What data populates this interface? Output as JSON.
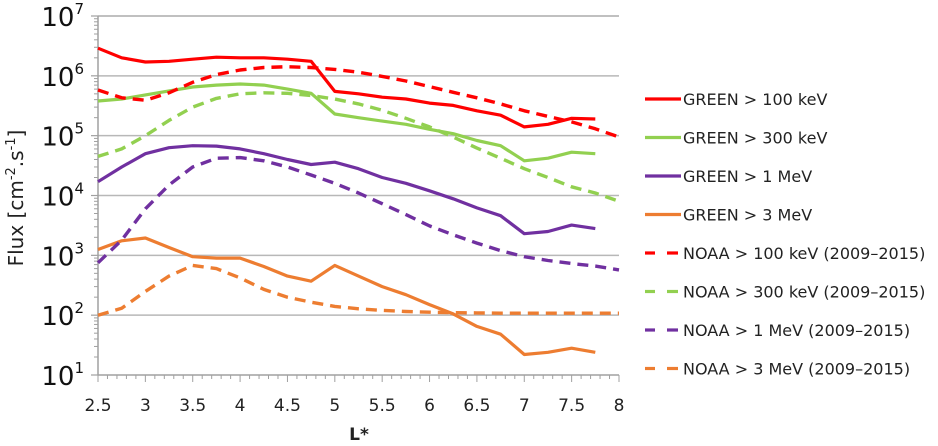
{
  "chart_data": {
    "type": "line",
    "title": "",
    "xlabel": "L*",
    "ylabel": "Flux [cm-2.s-1]",
    "ylabel_parts": {
      "base": "Flux [cm",
      "exp1": "-2",
      "mid": ".s",
      "exp2": "-1",
      "end": "]"
    },
    "yscale": "log",
    "xlim": [
      2.5,
      8
    ],
    "ylim": [
      10,
      10000000
    ],
    "grid": "horizontal",
    "legend_position": "right",
    "x_ticks": [
      "2.5",
      "3",
      "3.5",
      "4",
      "4.5",
      "5",
      "5.5",
      "6",
      "6.5",
      "7",
      "7.5",
      "8"
    ],
    "y_ticks": [
      {
        "base": "10",
        "exp": "1",
        "value": 10
      },
      {
        "base": "10",
        "exp": "2",
        "value": 100
      },
      {
        "base": "10",
        "exp": "3",
        "value": 1000
      },
      {
        "base": "10",
        "exp": "4",
        "value": 10000
      },
      {
        "base": "10",
        "exp": "5",
        "value": 100000
      },
      {
        "base": "10",
        "exp": "6",
        "value": 1000000
      },
      {
        "base": "10",
        "exp": "7",
        "value": 10000000
      }
    ],
    "series": [
      {
        "name": "GREEN > 100 keV",
        "color": "#ff0000",
        "style": "solid",
        "x": [
          2.5,
          2.75,
          3,
          3.25,
          3.5,
          3.75,
          4,
          4.25,
          4.5,
          4.75,
          5,
          5.25,
          5.5,
          5.75,
          6,
          6.25,
          6.5,
          6.75,
          7,
          7.25,
          7.5,
          7.75
        ],
        "y": [
          2900000,
          2000000,
          1700000,
          1750000,
          1900000,
          2050000,
          2000000,
          2000000,
          1900000,
          1750000,
          550000,
          500000,
          440000,
          410000,
          350000,
          320000,
          260000,
          220000,
          140000,
          155000,
          195000,
          190000
        ]
      },
      {
        "name": "GREEN > 300 keV",
        "color": "#92d050",
        "style": "solid",
        "x": [
          2.5,
          2.75,
          3,
          3.25,
          3.5,
          3.75,
          4,
          4.25,
          4.5,
          4.75,
          5,
          5.25,
          5.5,
          5.75,
          6,
          6.25,
          6.5,
          6.75,
          7,
          7.25,
          7.5,
          7.75
        ],
        "y": [
          380000,
          410000,
          480000,
          560000,
          650000,
          700000,
          730000,
          700000,
          600000,
          510000,
          230000,
          200000,
          175000,
          155000,
          128000,
          108000,
          83000,
          68000,
          38000,
          42000,
          53000,
          50000
        ]
      },
      {
        "name": "GREEN > 1 MeV",
        "color": "#7030a0",
        "style": "solid",
        "x": [
          2.5,
          2.75,
          3,
          3.25,
          3.5,
          3.75,
          4,
          4.25,
          4.5,
          4.75,
          5,
          5.25,
          5.5,
          5.75,
          6,
          6.25,
          6.5,
          6.75,
          7,
          7.25,
          7.5,
          7.75
        ],
        "y": [
          17000,
          30000,
          50000,
          63000,
          68000,
          67000,
          60000,
          50000,
          40000,
          33000,
          36000,
          28000,
          20000,
          16000,
          12000,
          8800,
          6200,
          4600,
          2300,
          2500,
          3200,
          2800
        ]
      },
      {
        "name": "GREEN > 3 MeV",
        "color": "#ed7d31",
        "style": "solid",
        "x": [
          2.5,
          2.75,
          3,
          3.25,
          3.5,
          3.75,
          4,
          4.25,
          4.5,
          4.75,
          5,
          5.25,
          5.5,
          5.75,
          6,
          6.25,
          6.5,
          6.75,
          7,
          7.25,
          7.5,
          7.75
        ],
        "y": [
          1250,
          1750,
          1950,
          1350,
          950,
          900,
          900,
          650,
          450,
          370,
          680,
          450,
          300,
          220,
          150,
          105,
          65,
          48,
          22,
          24,
          28,
          24
        ]
      },
      {
        "name": "NOAA > 100 keV (2009–2015)",
        "color": "#ff0000",
        "style": "dashed",
        "x": [
          2.5,
          2.75,
          3,
          3.25,
          3.5,
          3.75,
          4,
          4.25,
          4.5,
          4.75,
          5,
          5.25,
          5.5,
          5.75,
          6,
          6.25,
          6.5,
          6.75,
          7,
          7.25,
          7.5,
          7.75,
          8
        ],
        "y": [
          580000,
          430000,
          390000,
          520000,
          780000,
          1050000,
          1250000,
          1380000,
          1420000,
          1380000,
          1280000,
          1150000,
          980000,
          820000,
          660000,
          530000,
          430000,
          340000,
          260000,
          210000,
          170000,
          130000,
          95000
        ]
      },
      {
        "name": "NOAA > 300 keV (2009–2015)",
        "color": "#92d050",
        "style": "dashed",
        "x": [
          2.5,
          2.75,
          3,
          3.25,
          3.5,
          3.75,
          4,
          4.25,
          4.5,
          4.75,
          5,
          5.25,
          5.5,
          5.75,
          6,
          6.25,
          6.5,
          6.75,
          7,
          7.25,
          7.5,
          7.75,
          8
        ],
        "y": [
          45000,
          60000,
          100000,
          180000,
          300000,
          420000,
          500000,
          520000,
          510000,
          470000,
          410000,
          340000,
          265000,
          195000,
          140000,
          95000,
          62000,
          42000,
          28000,
          20000,
          14000,
          11000,
          8000
        ]
      },
      {
        "name": "NOAA > 1 MeV (2009–2015)",
        "color": "#7030a0",
        "style": "dashed",
        "x": [
          2.5,
          2.75,
          3,
          3.25,
          3.5,
          3.75,
          4,
          4.25,
          4.5,
          4.75,
          5,
          5.25,
          5.5,
          5.75,
          6,
          6.25,
          6.5,
          6.75,
          7,
          7.25,
          7.5,
          7.75,
          8
        ],
        "y": [
          750,
          1800,
          6000,
          15000,
          30000,
          42000,
          43000,
          38000,
          30000,
          22000,
          16000,
          11000,
          7300,
          4800,
          3100,
          2200,
          1600,
          1200,
          950,
          820,
          730,
          660,
          570
        ]
      },
      {
        "name": "NOAA > 3 MeV (2009–2015)",
        "color": "#ed7d31",
        "style": "dashed",
        "x": [
          2.5,
          2.75,
          3,
          3.25,
          3.5,
          3.75,
          4,
          4.25,
          4.5,
          4.75,
          5,
          5.25,
          5.5,
          5.75,
          6,
          6.25,
          6.5,
          6.75,
          7,
          7.25,
          7.5,
          7.75,
          8
        ],
        "y": [
          100,
          130,
          250,
          450,
          680,
          600,
          420,
          270,
          200,
          165,
          140,
          128,
          120,
          115,
          112,
          110,
          109,
          108,
          108,
          108,
          108,
          108,
          108
        ]
      }
    ]
  }
}
